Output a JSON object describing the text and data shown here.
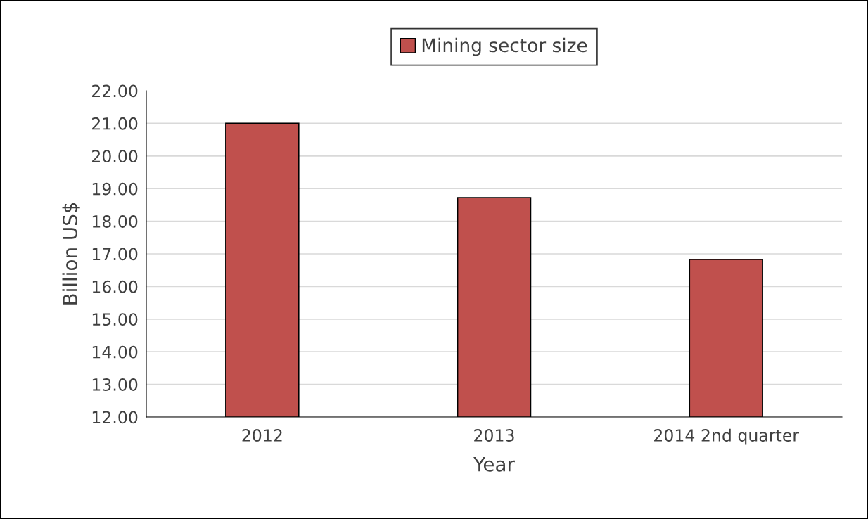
{
  "chart_data": {
    "type": "bar",
    "xlabel": "Year",
    "ylabel": "Billion US$",
    "categories": [
      "2012",
      "2013",
      "2014 2nd quarter"
    ],
    "series": [
      {
        "name": "Mining sector size",
        "color": "#c0504d",
        "values": [
          21.0,
          18.72,
          16.83
        ]
      }
    ],
    "ylim": [
      12,
      22
    ],
    "yticks": [
      {
        "value": 12,
        "label": "12.00"
      },
      {
        "value": 13,
        "label": "13.00"
      },
      {
        "value": 14,
        "label": "14.00"
      },
      {
        "value": 15,
        "label": "15.00"
      },
      {
        "value": 16,
        "label": "16.00"
      },
      {
        "value": 17,
        "label": "17.00"
      },
      {
        "value": 18,
        "label": "18.00"
      },
      {
        "value": 19,
        "label": "19.00"
      },
      {
        "value": 20,
        "label": "20.00"
      },
      {
        "value": 21,
        "label": "21.00"
      },
      {
        "value": 22,
        "label": "22.00"
      }
    ],
    "grid": "y",
    "legend": "top"
  }
}
